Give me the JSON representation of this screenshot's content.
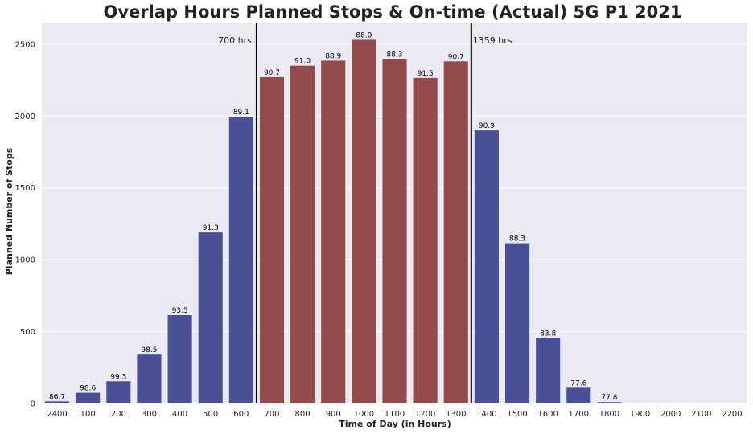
{
  "chart_data": {
    "type": "bar",
    "title": "Overlap Hours Planned Stops & On-time (Actual) 5G P1 2021",
    "xlabel": "Time of Day (in Hours)",
    "ylabel": "Planned Number of Stops",
    "ylim": [
      0,
      2650
    ],
    "yticks": [
      0,
      500,
      1000,
      1500,
      2000,
      2500
    ],
    "grid": true,
    "categories": [
      "2400",
      "100",
      "200",
      "300",
      "400",
      "500",
      "600",
      "700",
      "800",
      "900",
      "1000",
      "1100",
      "1200",
      "1300",
      "1400",
      "1500",
      "1600",
      "1700",
      "1800",
      "1900",
      "2000",
      "2100",
      "2200"
    ],
    "values": [
      15,
      75,
      155,
      340,
      615,
      1190,
      1995,
      2270,
      2350,
      2385,
      2530,
      2395,
      2265,
      2380,
      1900,
      1115,
      455,
      110,
      10,
      0,
      0,
      0,
      0
    ],
    "ontime_labels": [
      "86.7",
      "98.6",
      "99.3",
      "98.5",
      "93.5",
      "91.3",
      "89.1",
      "90.7",
      "91.0",
      "88.9",
      "88.0",
      "88.3",
      "91.5",
      "90.7",
      "90.9",
      "88.3",
      "83.8",
      "77.6",
      "77.8",
      "",
      "",
      "",
      ""
    ],
    "highlight_range": [
      "700",
      "1300"
    ],
    "colors": {
      "background": "#eaeaf2",
      "grid": "#ffffff",
      "bar_normal": "#4a5095",
      "bar_overlap": "#934a4b",
      "vline": "#000000"
    },
    "vlines": [
      {
        "label": "700 hrs",
        "position": "between 600 and 700"
      },
      {
        "label": "1359 hrs",
        "position": "between 1300 and 1400"
      }
    ]
  }
}
